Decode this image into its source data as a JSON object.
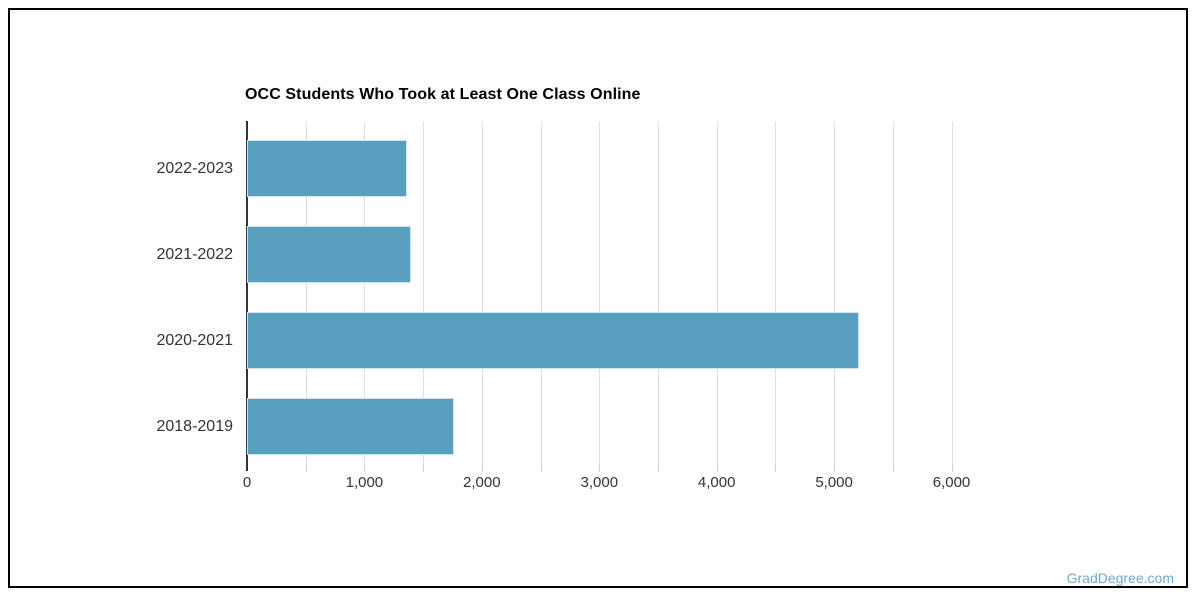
{
  "frame": {
    "border_color": "#000000",
    "background_color": "#ffffff"
  },
  "chart_data": {
    "type": "bar",
    "orientation": "horizontal",
    "title": "OCC Students Who Took at Least One Class Online",
    "categories": [
      "2022-2023",
      "2021-2022",
      "2020-2021",
      "2018-2019"
    ],
    "values": [
      1360,
      1400,
      5210,
      1760
    ],
    "xlabel": "",
    "ylabel": "",
    "xlim": [
      0,
      6000
    ],
    "x_ticks": [
      0,
      1000,
      2000,
      3000,
      4000,
      5000,
      6000
    ],
    "x_tick_labels": [
      "0",
      "1,000",
      "2,000",
      "3,000",
      "4,000",
      "5,000",
      "6,000"
    ],
    "minor_tick_step": 500,
    "gridline_step": 500,
    "grid": true,
    "legend": false,
    "bar_color": "#58a0bd",
    "bar_edge_color": "#cfe3ea",
    "gridline_color": "#e0e0e0",
    "axis_line_color": "#333333",
    "tick_color": "#cccccc",
    "label_color": "#333333",
    "title_color": "#000000"
  },
  "watermark": {
    "text": "GradDegree.com",
    "color": "#72a9cc"
  }
}
